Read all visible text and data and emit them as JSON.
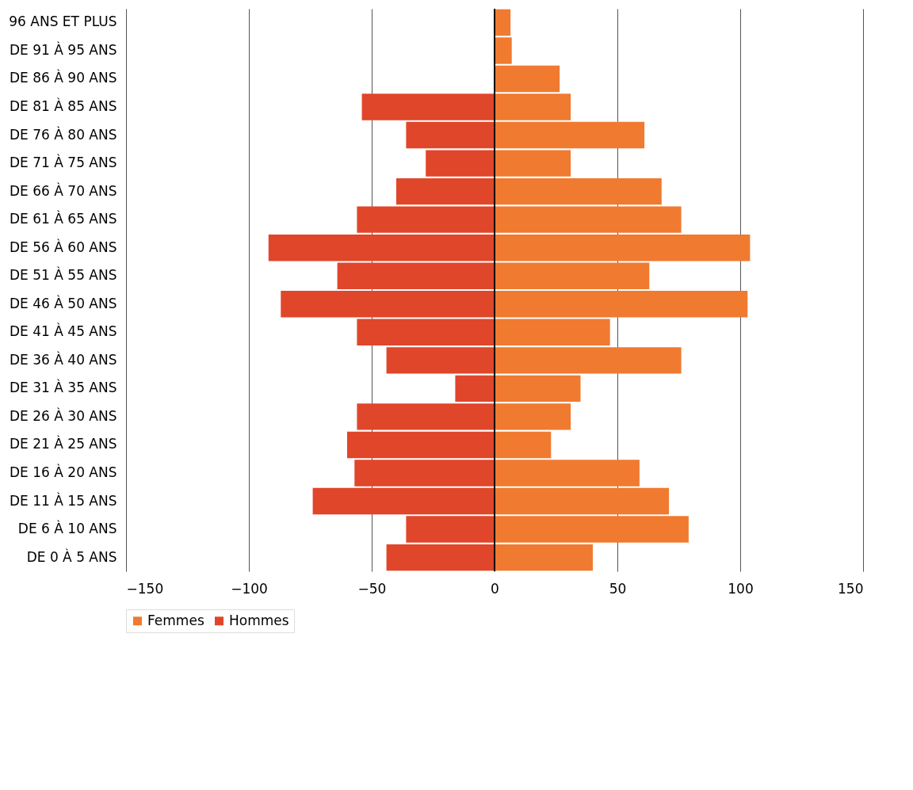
{
  "chart_data": {
    "type": "bar",
    "orientation": "horizontal",
    "categories": [
      "96 ANS ET PLUS",
      "DE 91 À 95 ANS",
      "DE 86 À 90 ANS",
      "DE 81 À 85 ANS",
      "DE 76 À 80 ANS",
      "DE 71 À 75 ANS",
      "DE 66 À 70 ANS",
      "DE 61 À 65 ANS",
      "DE 56 À 60 ANS",
      "DE 51 À 55 ANS",
      "DE 46 À 50 ANS",
      "DE 41 À 45 ANS",
      "DE 36 À 40 ANS",
      "DE 31 À 35 ANS",
      "DE 26 À 30 ANS",
      "DE 21 À 25 ANS",
      "DE 16 À 20 ANS",
      "DE 11 À 15 ANS",
      "DE 6 À 10 ANS",
      "DE 0 À 5 ANS"
    ],
    "series": [
      {
        "name": "Femmes",
        "color": "#f07a30",
        "values": [
          6.5,
          7,
          26.5,
          31,
          61,
          31,
          68,
          76,
          104,
          63,
          103,
          47,
          76,
          35,
          31,
          23,
          59,
          71,
          79,
          40
        ]
      },
      {
        "name": "Hommes",
        "color": "#e0462a",
        "values": [
          0,
          0,
          0,
          -54,
          -36,
          -28,
          -40,
          -56,
          -92,
          -64,
          -87,
          -56,
          -44,
          -16,
          -56,
          -60,
          -57,
          -74,
          -36,
          -44
        ]
      }
    ],
    "stacked": true,
    "xlim": [
      -150,
      150
    ],
    "xticks": [
      -150,
      -100,
      -50,
      0,
      50,
      100,
      150
    ],
    "grid": "x",
    "legend": "bottom",
    "ref_lines": [
      {
        "axis": "x",
        "value": 0,
        "color": "#000000"
      }
    ]
  }
}
